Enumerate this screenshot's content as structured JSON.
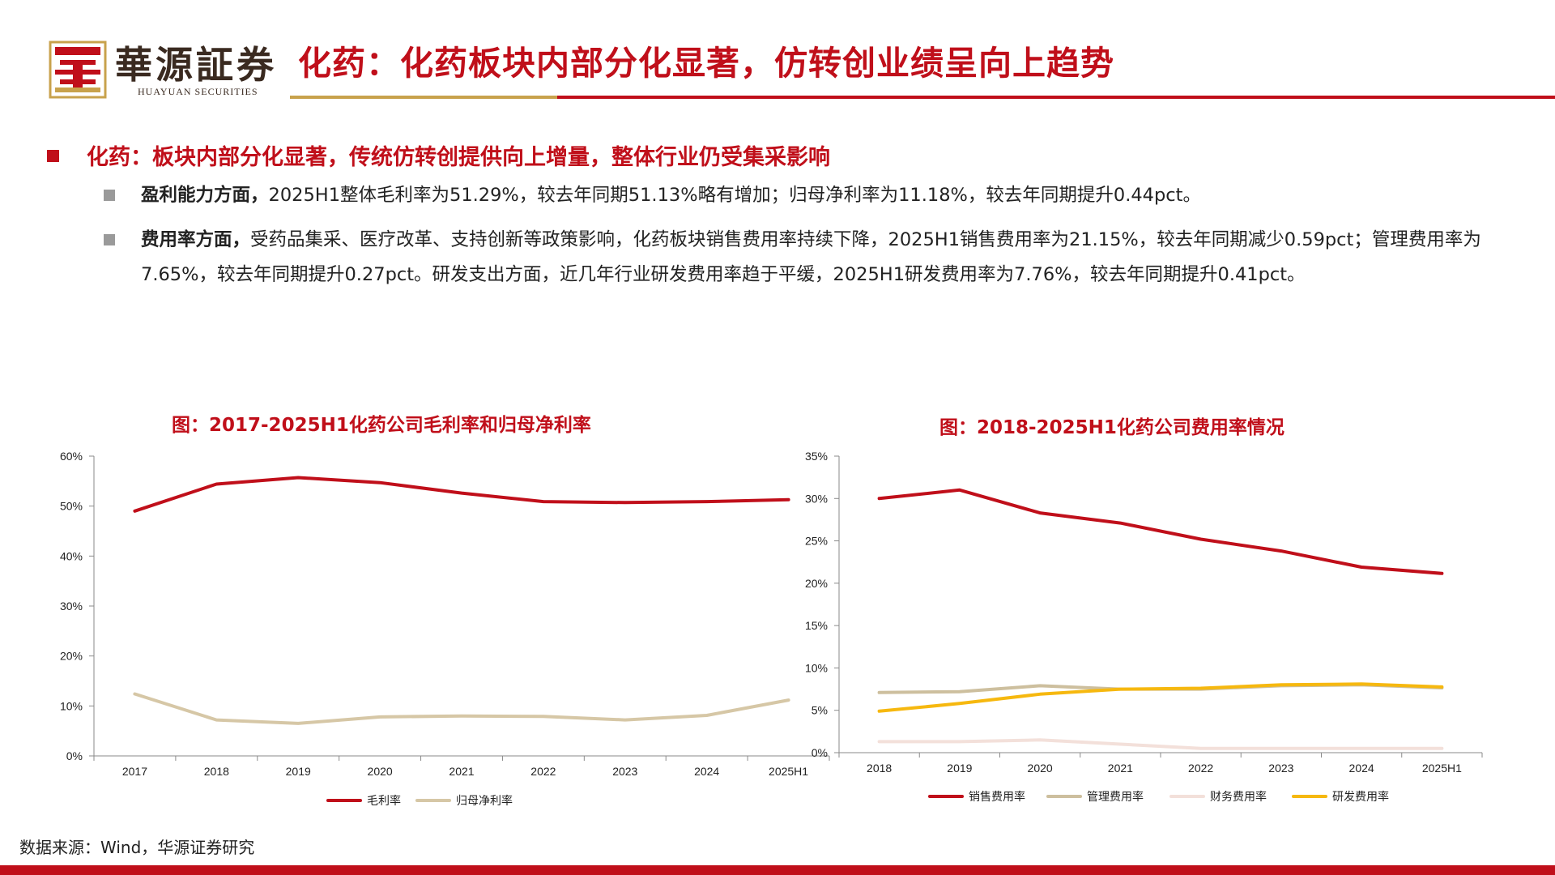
{
  "header": {
    "logo_cn": "華源証券",
    "logo_en": "HUAYUAN SECURITIES",
    "title": "化药：化药板块内部分化显著，仿转创业绩呈向上趋势"
  },
  "section": {
    "heading": "化药：板块内部分化显著，传统仿转创提供向上增量，整体行业仍受集采影响",
    "points": [
      {
        "label": "盈利能力方面，",
        "text": "2025H1整体毛利率为51.29%，较去年同期51.13%略有增加；归母净利率为11.18%，较去年同期提升0.44pct。"
      },
      {
        "label": "费用率方面，",
        "text": "受药品集采、医疗改革、支持创新等政策影响，化药板块销售费用率持续下降，2025H1销售费用率为21.15%，较去年同期减少0.59pct；管理费用率为7.65%，较去年同期提升0.27pct。研发支出方面，近几年行业研发费用率趋于平缓，2025H1研发费用率为7.76%，较去年同期提升0.41pct。"
      }
    ]
  },
  "chart_data": [
    {
      "type": "line",
      "title": "图：2017-2025H1化药公司毛利率和归母净利率",
      "categories": [
        "2017",
        "2018",
        "2019",
        "2020",
        "2021",
        "2022",
        "2023",
        "2024",
        "2025H1"
      ],
      "y_ticks": [
        "0%",
        "10%",
        "20%",
        "30%",
        "40%",
        "50%",
        "60%"
      ],
      "ylim": [
        0,
        60
      ],
      "legend_position": "bottom",
      "series": [
        {
          "name": "毛利率",
          "color": "#c00f1a",
          "values": [
            49.0,
            54.4,
            55.7,
            54.7,
            52.6,
            50.9,
            50.7,
            50.9,
            51.29
          ]
        },
        {
          "name": "归母净利率",
          "color": "#d6c7a6",
          "values": [
            12.4,
            7.2,
            6.5,
            7.8,
            8.0,
            7.9,
            7.2,
            8.1,
            11.18
          ]
        }
      ]
    },
    {
      "type": "line",
      "title": "图：2018-2025H1化药公司费用率情况",
      "categories": [
        "2018",
        "2019",
        "2020",
        "2021",
        "2022",
        "2023",
        "2024",
        "2025H1"
      ],
      "y_ticks": [
        "0%",
        "5%",
        "10%",
        "15%",
        "20%",
        "25%",
        "30%",
        "35%"
      ],
      "ylim": [
        0,
        35
      ],
      "legend_position": "bottom",
      "series": [
        {
          "name": "销售费用率",
          "color": "#c00f1a",
          "values": [
            30.0,
            31.0,
            28.3,
            27.1,
            25.2,
            23.8,
            21.9,
            21.15
          ]
        },
        {
          "name": "管理费用率",
          "color": "#cdbf9e",
          "values": [
            7.1,
            7.2,
            7.9,
            7.5,
            7.5,
            7.9,
            8.0,
            7.65
          ]
        },
        {
          "name": "财务费用率",
          "color": "#f3e0da",
          "values": [
            1.3,
            1.3,
            1.5,
            1.0,
            0.5,
            0.5,
            0.5,
            0.5
          ]
        },
        {
          "name": "研发费用率",
          "color": "#f6b80f",
          "values": [
            4.9,
            5.8,
            6.9,
            7.5,
            7.6,
            8.0,
            8.1,
            7.76
          ]
        }
      ]
    }
  ],
  "footer": {
    "source": "数据来源：Wind，华源证券研究"
  }
}
